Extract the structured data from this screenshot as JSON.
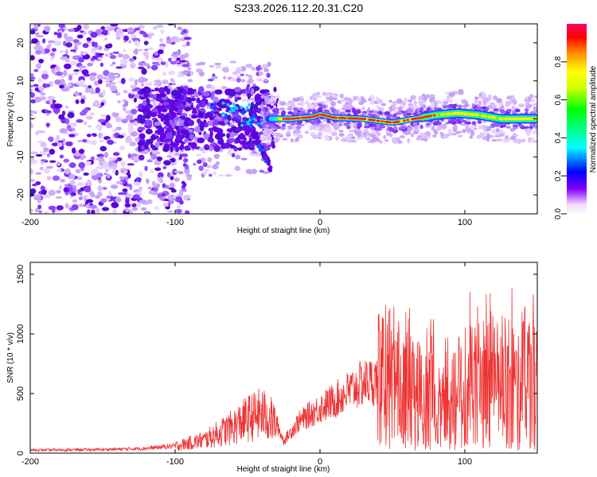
{
  "title": "S233.2026.112.20.31.C20",
  "chart_data": [
    {
      "type": "heatmap",
      "xlabel": "Height of straight line (km)",
      "ylabel": "Frequency (Hz)",
      "xlim": [
        -200,
        150
      ],
      "ylim": [
        -25,
        25
      ],
      "xticks": [
        -200,
        -100,
        0,
        100
      ],
      "yticks": [
        -20,
        -10,
        0,
        10,
        20
      ],
      "colorbar": {
        "label": "Normalized spectral amplitude",
        "range": [
          0,
          1
        ],
        "ticks": [
          0.0,
          0.2,
          0.4,
          0.6,
          0.8
        ]
      },
      "ridge_frequency_profile": [
        {
          "x": -35,
          "y": 0.0
        },
        {
          "x": -20,
          "y": 0.0
        },
        {
          "x": -5,
          "y": 0.5
        },
        {
          "x": 0,
          "y": 1.2
        },
        {
          "x": 10,
          "y": 0.3
        },
        {
          "x": 30,
          "y": 0.0
        },
        {
          "x": 50,
          "y": -1.0
        },
        {
          "x": 65,
          "y": 0.0
        },
        {
          "x": 80,
          "y": 1.0
        },
        {
          "x": 95,
          "y": 1.5
        },
        {
          "x": 110,
          "y": 1.0
        },
        {
          "x": 125,
          "y": 0.0
        },
        {
          "x": 150,
          "y": 0.0
        }
      ]
    },
    {
      "type": "line",
      "xlabel": "Height of straight line (km)",
      "ylabel": "SNR (10 * v/v)",
      "xlim": [
        -200,
        150
      ],
      "ylim": [
        0,
        1600
      ],
      "xticks": [
        -200,
        -100,
        0,
        100
      ],
      "yticks": [
        0,
        500,
        1000,
        1500
      ],
      "series": [
        {
          "color": "#ee3333",
          "x": [
            -200,
            -150,
            -120,
            -100,
            -80,
            -60,
            -50,
            -40,
            -30,
            -25,
            -15,
            0,
            10,
            20,
            30,
            40,
            50,
            60,
            70,
            80,
            90,
            100,
            110,
            120,
            130,
            140,
            150
          ],
          "y": [
            25,
            30,
            40,
            60,
            110,
            220,
            290,
            330,
            250,
            100,
            260,
            380,
            440,
            520,
            590,
            610,
            550,
            520,
            480,
            540,
            500,
            560,
            600,
            620,
            580,
            620,
            600
          ]
        }
      ]
    }
  ]
}
